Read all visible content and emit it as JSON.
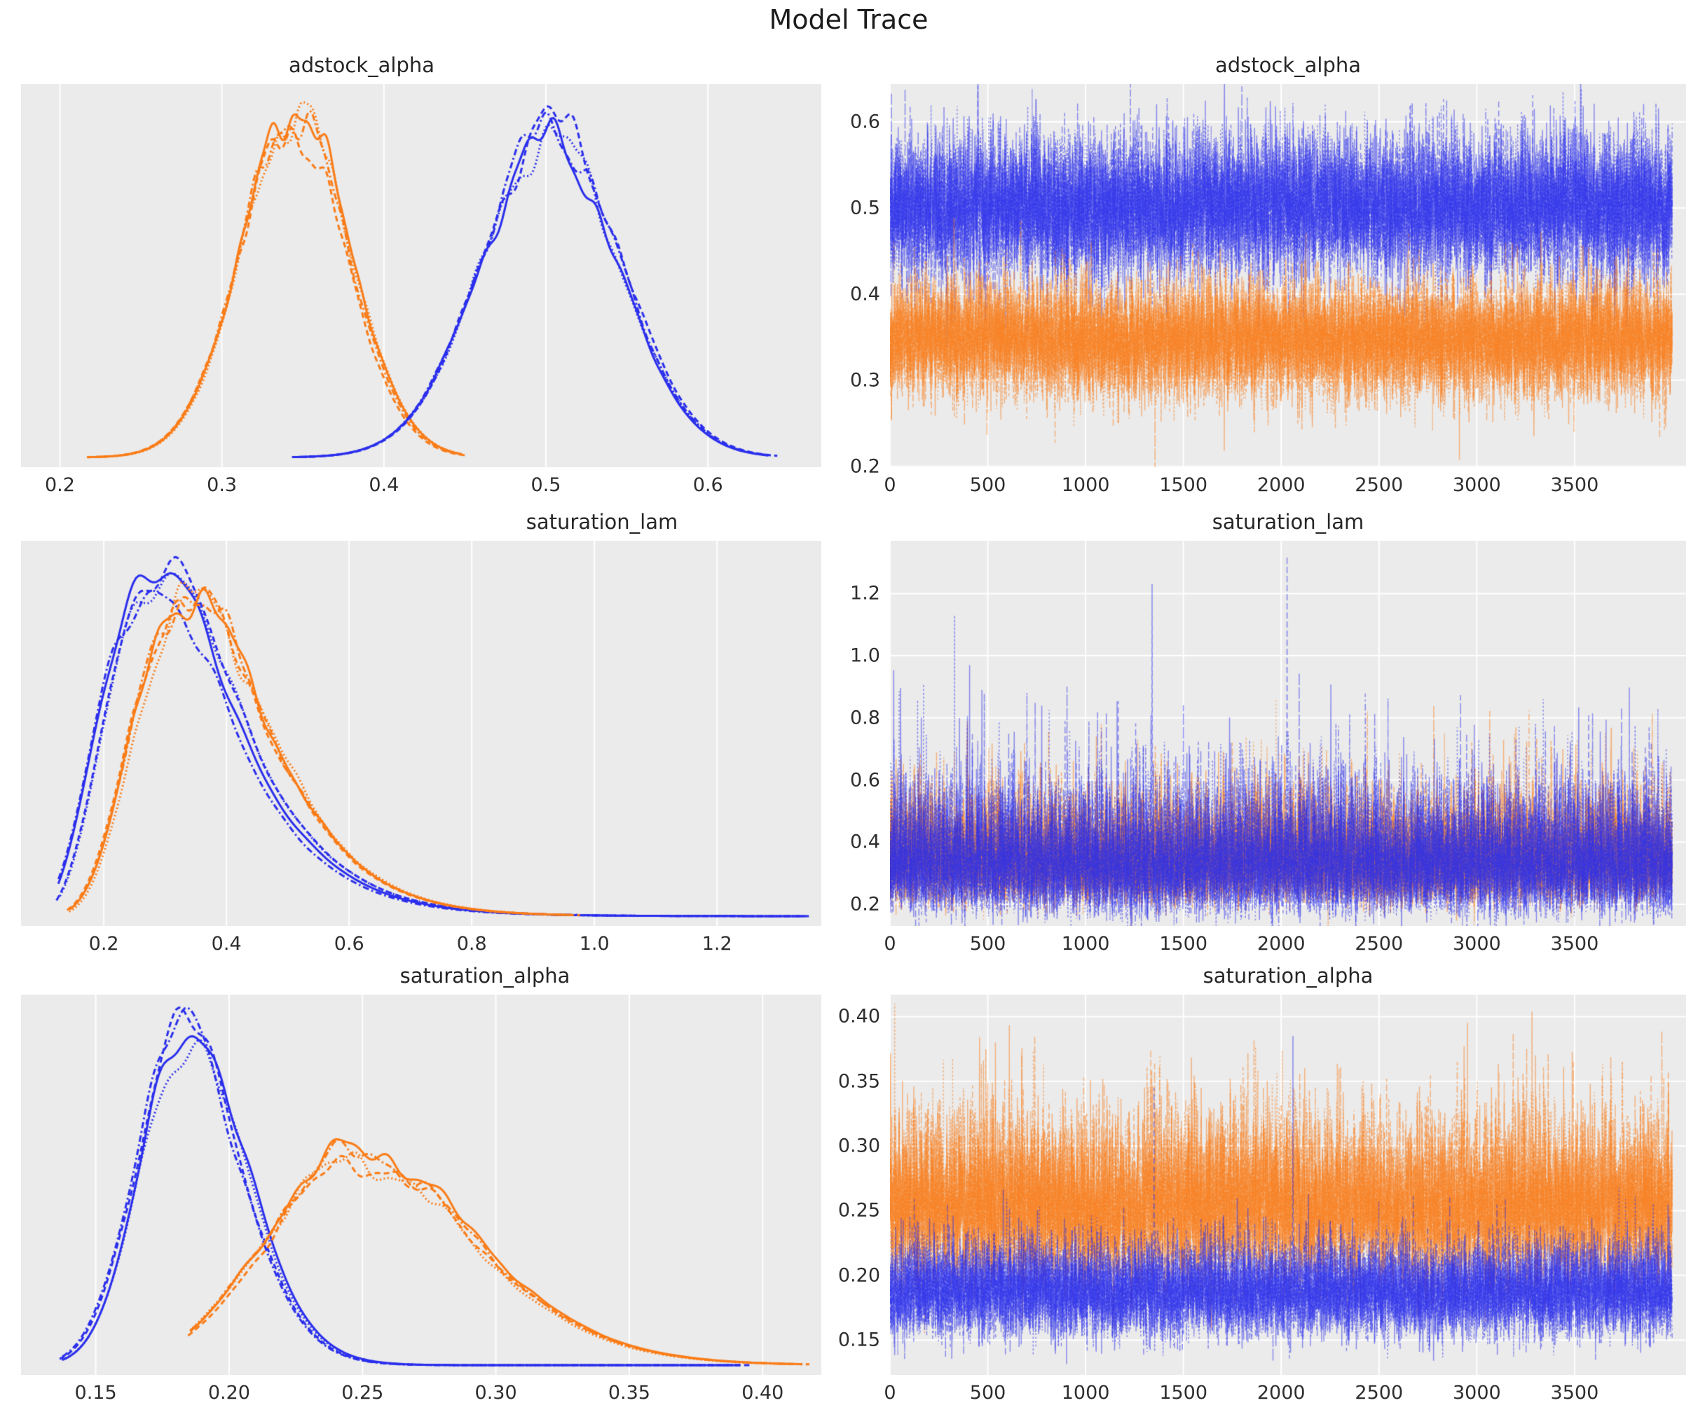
{
  "suptitle": "Model Trace",
  "style": {
    "plot_bg": "#ebebeb",
    "grid_color": "#ffffff",
    "text_color": "#262626",
    "chain_colors": {
      "blue": "#2a2eec",
      "orange": "#fa7c17"
    },
    "trace_alpha": 0.5,
    "kde_line_width": 3,
    "trace_line_width": 1.5
  },
  "chains": {
    "count": 4,
    "line_styles": [
      "solid",
      "dashed",
      "dashdot",
      "dotted"
    ]
  },
  "chart_data": [
    {
      "id": "adstock_alpha_kde",
      "type": "kde",
      "title": "adstock_alpha",
      "position": "row-1-left",
      "x_axis": {
        "lim": [
          0.176,
          0.67
        ],
        "ticks": [
          0.2,
          0.3,
          0.4,
          0.5,
          0.6
        ],
        "decimals": 1
      },
      "grid": "vertical",
      "series": [
        {
          "name": "chain-group-orange",
          "color": "orange",
          "dist": "normal",
          "mode": 0.345,
          "sd": 0.0335,
          "range": [
            0.218,
            0.447
          ],
          "peak": 0.96
        },
        {
          "name": "chain-group-blue",
          "color": "blue",
          "dist": "normal",
          "mode": 0.503,
          "sd": 0.0425,
          "range": [
            0.345,
            0.637
          ],
          "peak": 0.92
        }
      ]
    },
    {
      "id": "adstock_alpha_trace",
      "type": "trace",
      "title": "adstock_alpha",
      "position": "row-1-right",
      "n_draws": 4000,
      "x_axis": {
        "lim": [
          0,
          4070
        ],
        "ticks": [
          0,
          500,
          1000,
          1500,
          2000,
          2500,
          3000,
          3500
        ],
        "decimals": 0
      },
      "y_axis": {
        "lim": [
          0.199,
          0.644
        ],
        "ticks": [
          0.2,
          0.3,
          0.4,
          0.5,
          0.6
        ],
        "decimals": 1
      },
      "grid": "both",
      "series": [
        {
          "name": "chain-group-blue",
          "color": "blue",
          "dist": "normal",
          "mode": 0.502,
          "sd": 0.04,
          "rho": 0.15,
          "spikes": []
        },
        {
          "name": "chain-group-orange",
          "color": "orange",
          "dist": "normal",
          "mode": 0.347,
          "sd": 0.033,
          "rho": 0.15,
          "spikes": []
        }
      ]
    },
    {
      "id": "saturation_lam_kde",
      "type": "kde",
      "title": "saturation_lam",
      "position": "row-2-left",
      "x_axis": {
        "lim": [
          0.065,
          1.37
        ],
        "ticks": [
          0.2,
          0.4,
          0.6,
          0.8,
          1.0,
          1.2
        ],
        "decimals": 1
      },
      "grid": "vertical",
      "series": [
        {
          "name": "chain-group-blue",
          "color": "blue",
          "dist": "lognormal",
          "mode": 0.285,
          "sigma": 0.36,
          "range": [
            0.13,
            1.33
          ],
          "peak": 0.97
        },
        {
          "name": "chain-group-orange",
          "color": "orange",
          "dist": "lognormal",
          "mode": 0.34,
          "sigma": 0.31,
          "range": [
            0.145,
            0.96
          ],
          "peak": 0.9
        }
      ]
    },
    {
      "id": "saturation_lam_trace",
      "type": "trace",
      "title": "saturation_lam",
      "position": "row-2-right",
      "n_draws": 4000,
      "x_axis": {
        "lim": [
          0,
          4070
        ],
        "ticks": [
          0,
          500,
          1000,
          1500,
          2000,
          2500,
          3000,
          3500
        ],
        "decimals": 0
      },
      "y_axis": {
        "lim": [
          0.13,
          1.37
        ],
        "ticks": [
          0.2,
          0.4,
          0.6,
          0.8,
          1.0,
          1.2
        ],
        "decimals": 1
      },
      "grid": "both",
      "series": [
        {
          "name": "chain-group-orange",
          "color": "orange",
          "dist": "lognormal",
          "mode": 0.33,
          "sigma": 0.24,
          "rho": 0.2,
          "spikes": [
            {
              "chain": 3,
              "draw": 1080,
              "value": 0.78
            },
            {
              "chain": 1,
              "draw": 1750,
              "value": 0.72
            },
            {
              "chain": 2,
              "draw": 2780,
              "value": 0.84
            },
            {
              "chain": 0,
              "draw": 3440,
              "value": 0.7
            }
          ]
        },
        {
          "name": "chain-group-blue",
          "color": "blue",
          "dist": "lognormal",
          "mode": 0.3,
          "sigma": 0.3,
          "rho": 0.2,
          "spikes": [
            {
              "chain": 3,
              "draw": 330,
              "value": 1.13
            },
            {
              "chain": 0,
              "draw": 470,
              "value": 0.89
            },
            {
              "chain": 2,
              "draw": 700,
              "value": 0.88
            },
            {
              "chain": 1,
              "draw": 1340,
              "value": 1.23
            },
            {
              "chain": 2,
              "draw": 1500,
              "value": 0.84
            },
            {
              "chain": 1,
              "draw": 2030,
              "value": 1.32
            },
            {
              "chain": 1,
              "draw": 2280,
              "value": 0.78
            },
            {
              "chain": 3,
              "draw": 2900,
              "value": 0.77
            },
            {
              "chain": 2,
              "draw": 3300,
              "value": 0.78
            }
          ]
        }
      ]
    },
    {
      "id": "saturation_alpha_kde",
      "type": "kde",
      "title": "saturation_alpha",
      "position": "row-3-left",
      "x_axis": {
        "lim": [
          0.122,
          0.422
        ],
        "ticks": [
          0.15,
          0.2,
          0.25,
          0.3,
          0.35,
          0.4
        ],
        "decimals": 2
      },
      "grid": "vertical",
      "series": [
        {
          "name": "chain-group-blue",
          "color": "blue",
          "dist": "lognormal",
          "mode": 0.185,
          "sigma": 0.105,
          "range": [
            0.138,
            0.39
          ],
          "peak": 0.95
        },
        {
          "name": "chain-group-orange",
          "color": "orange",
          "dist": "lognormal",
          "mode": 0.249,
          "sigma": 0.155,
          "range": [
            0.186,
            0.413
          ],
          "peak": 0.6
        }
      ]
    },
    {
      "id": "saturation_alpha_trace",
      "type": "trace",
      "title": "saturation_alpha",
      "position": "row-3-right",
      "n_draws": 4000,
      "x_axis": {
        "lim": [
          0,
          4070
        ],
        "ticks": [
          0,
          500,
          1000,
          1500,
          2000,
          2500,
          3000,
          3500
        ],
        "decimals": 0
      },
      "y_axis": {
        "lim": [
          0.123,
          0.417
        ],
        "ticks": [
          0.15,
          0.2,
          0.25,
          0.3,
          0.35,
          0.4
        ],
        "decimals": 2
      },
      "grid": "both",
      "series": [
        {
          "name": "chain-group-orange",
          "color": "orange",
          "dist": "lognormal",
          "mode": 0.25,
          "sigma": 0.12,
          "rho": 0.2,
          "spikes": [
            {
              "chain": 2,
              "draw": 490,
              "value": 0.375
            },
            {
              "chain": 1,
              "draw": 740,
              "value": 0.385
            },
            {
              "chain": 3,
              "draw": 1380,
              "value": 0.37
            },
            {
              "chain": 0,
              "draw": 2120,
              "value": 0.36
            },
            {
              "chain": 2,
              "draw": 2900,
              "value": 0.365
            },
            {
              "chain": 1,
              "draw": 3300,
              "value": 0.37
            }
          ]
        },
        {
          "name": "chain-group-blue",
          "color": "blue",
          "dist": "lognormal",
          "mode": 0.185,
          "sigma": 0.095,
          "rho": 0.2,
          "spikes": [
            {
              "chain": 1,
              "draw": 1350,
              "value": 0.345
            },
            {
              "chain": 1,
              "draw": 2060,
              "value": 0.385
            }
          ]
        }
      ]
    }
  ]
}
